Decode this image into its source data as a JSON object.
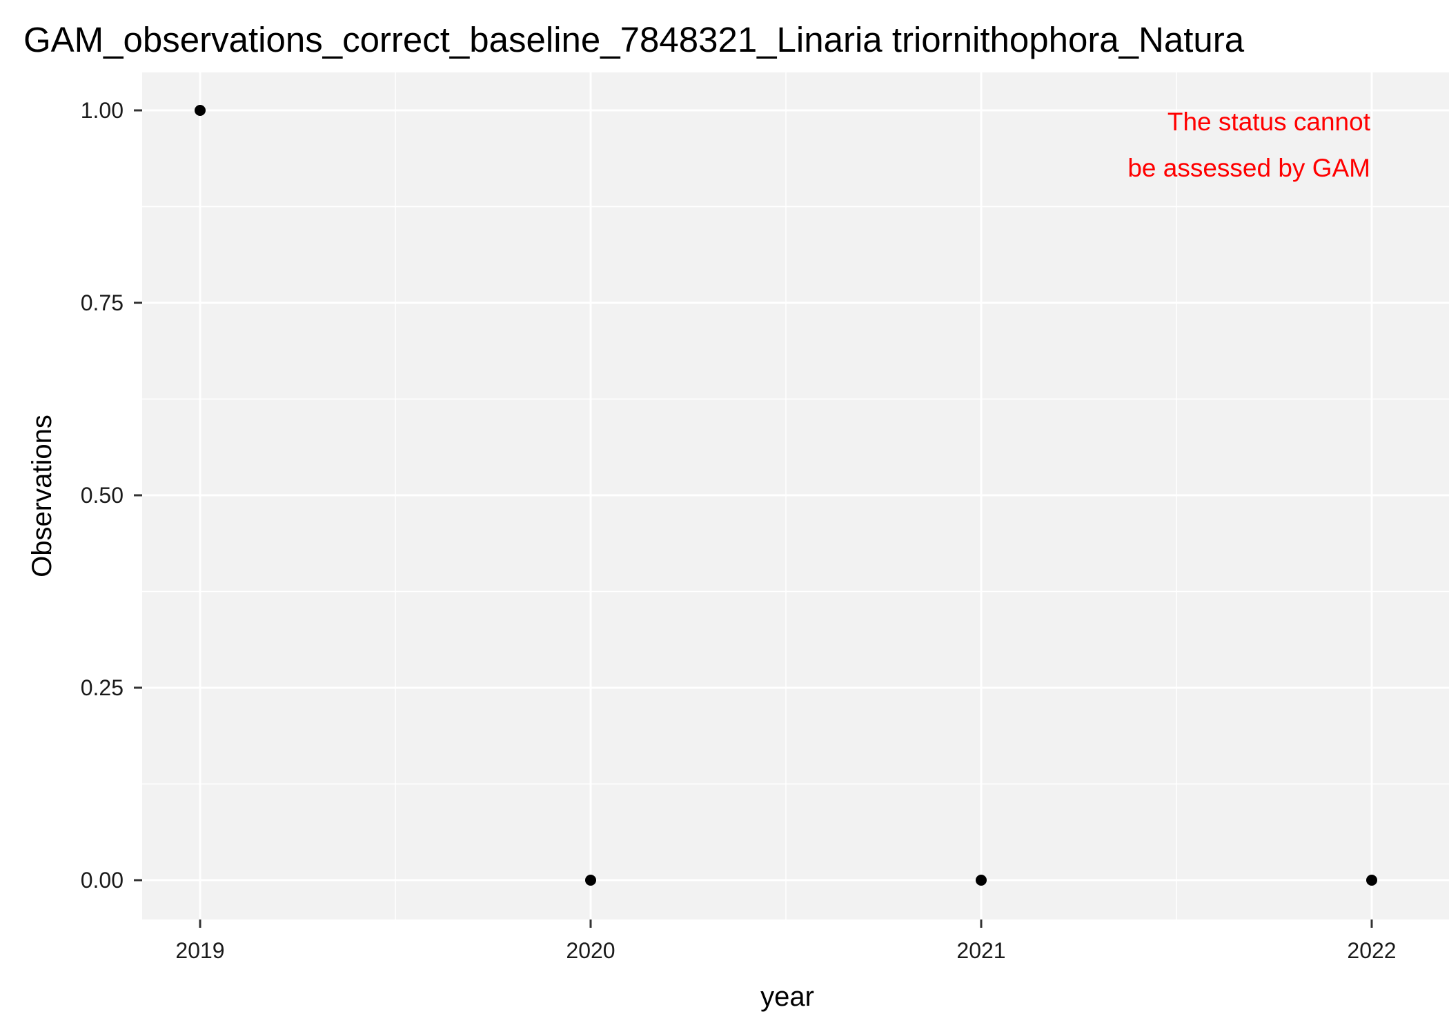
{
  "chart_data": {
    "type": "scatter",
    "title": "GAM_observations_correct_baseline_7848321_Linaria triornithophora_Natura",
    "xlabel": "year",
    "ylabel": "Observations",
    "x_ticks": [
      "2019",
      "2020",
      "2021",
      "2022"
    ],
    "y_ticks": [
      "0.00",
      "0.25",
      "0.50",
      "0.75",
      "1.00"
    ],
    "xlim": [
      2018.85,
      2022.15
    ],
    "ylim": [
      -0.05,
      1.05
    ],
    "grid": true,
    "points": [
      {
        "x": 2019,
        "y": 1
      },
      {
        "x": 2020,
        "y": 0
      },
      {
        "x": 2021,
        "y": 0
      },
      {
        "x": 2022,
        "y": 0
      }
    ],
    "annotation": {
      "lines": [
        "The status cannot",
        "be assessed by GAM"
      ],
      "color": "#ff0000"
    },
    "colors": {
      "panel_background": "#f2f2f2",
      "grid": "#ffffff",
      "point": "#000000"
    }
  }
}
